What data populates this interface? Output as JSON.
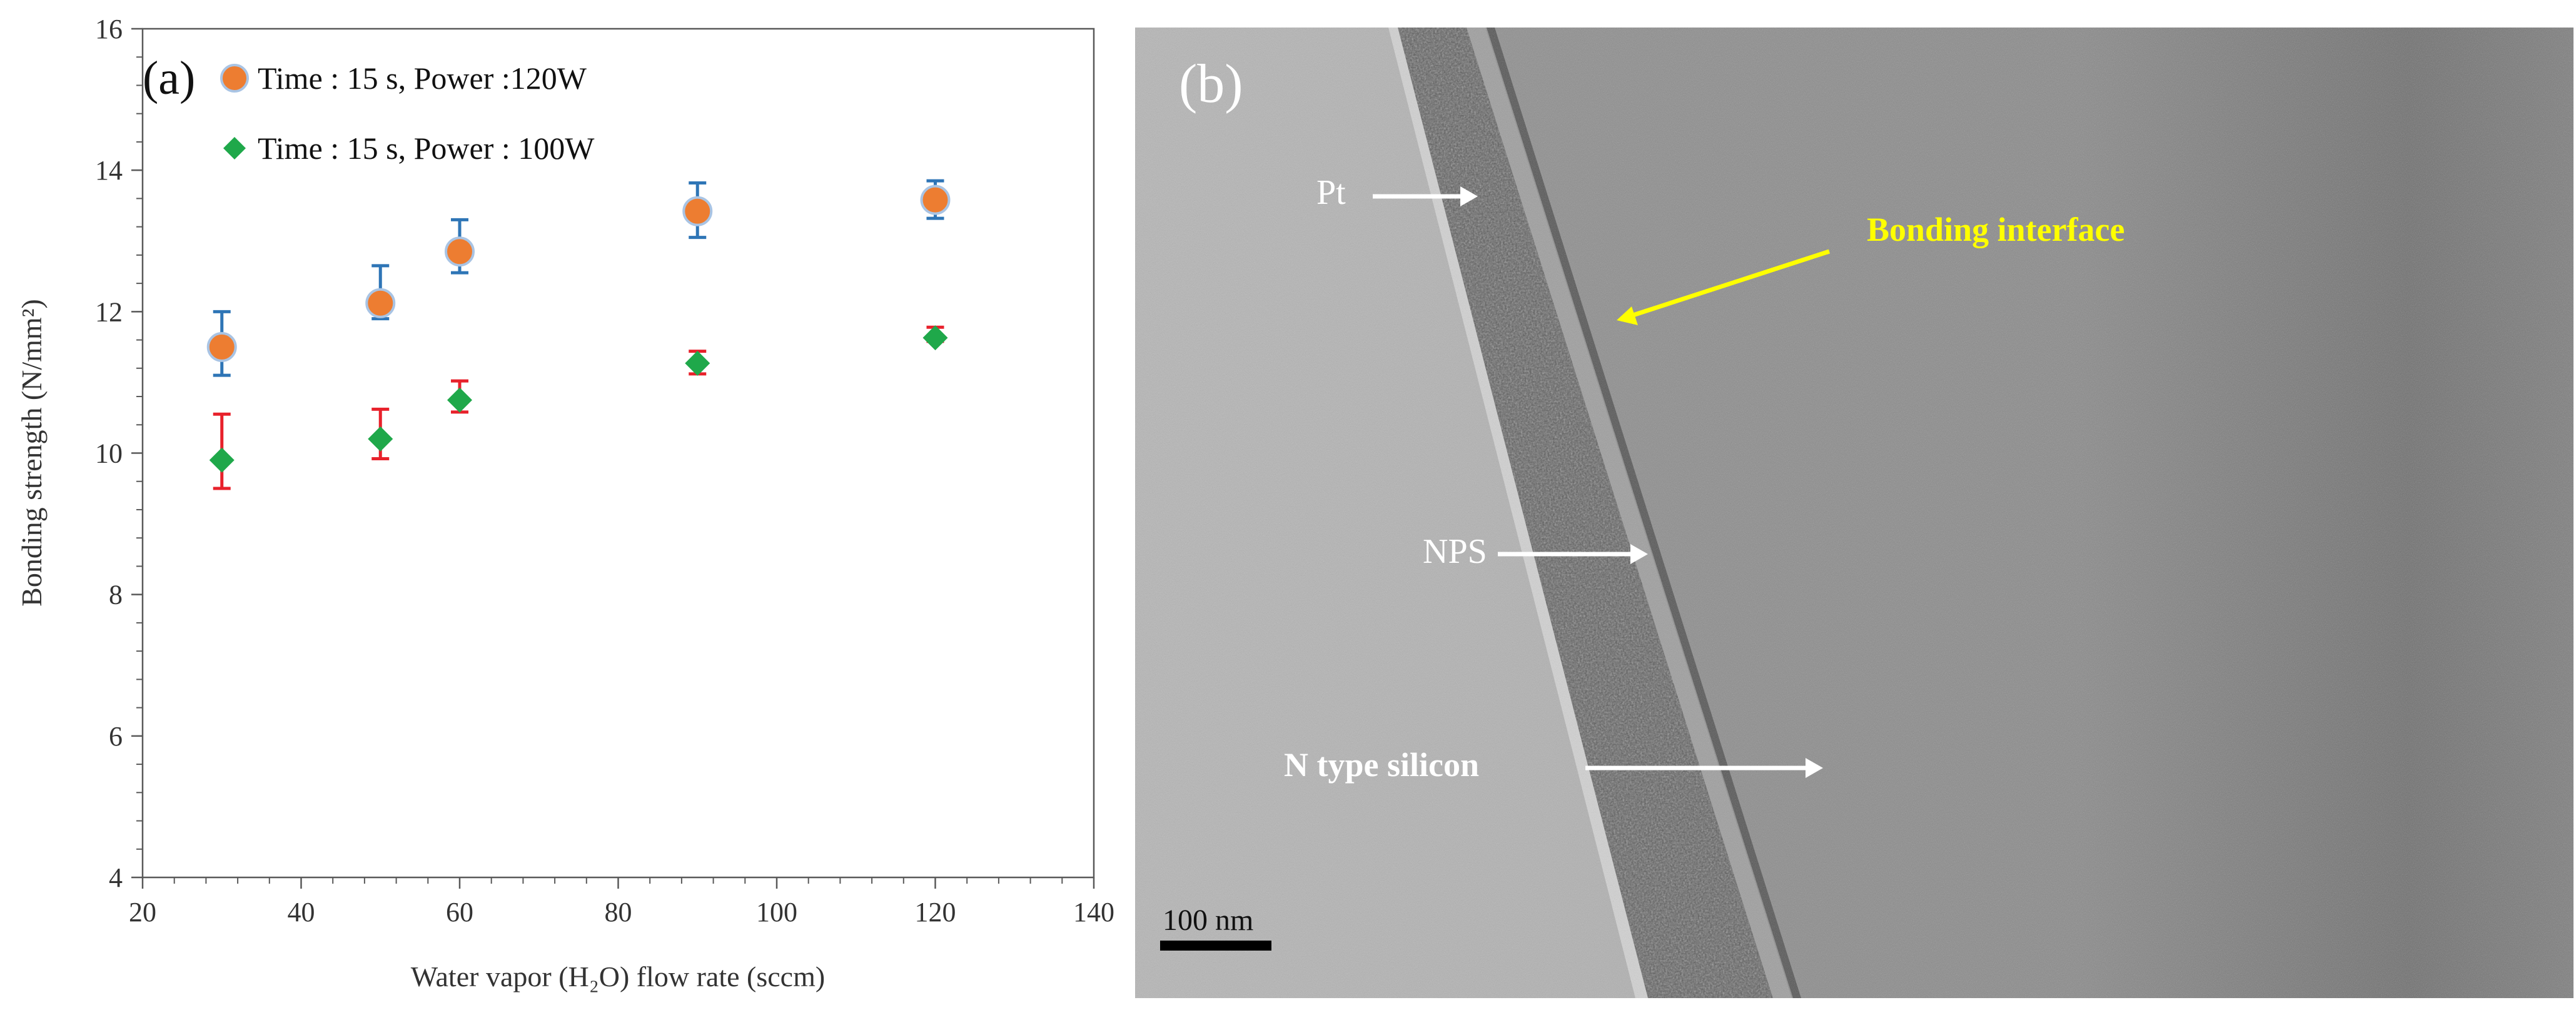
{
  "chart_data": {
    "type": "scatter",
    "panel_label": "(a)",
    "xlabel": "Water vapor (H₂O) flow rate (sccm)",
    "ylabel": "Bonding strength (N/mm²)",
    "xlim": [
      20,
      140
    ],
    "ylim": [
      4,
      16
    ],
    "xticks": [
      "20",
      "40",
      "60",
      "80",
      "100",
      "120",
      "140"
    ],
    "yticks": [
      "4",
      "6",
      "8",
      "10",
      "12",
      "14",
      "16"
    ],
    "grid": false,
    "legend_position": "top-left",
    "series": [
      {
        "name": "Time : 15 s, Power :120W",
        "marker": "circle",
        "color": "#ed7d31",
        "error_bar_color": "#2e75b6",
        "x": [
          30,
          50,
          60,
          90,
          120
        ],
        "y": [
          11.5,
          12.12,
          12.85,
          13.42,
          13.58
        ],
        "err_low": [
          11.1,
          11.9,
          12.55,
          13.05,
          13.32
        ],
        "err_high": [
          12.0,
          12.65,
          13.3,
          13.82,
          13.85
        ]
      },
      {
        "name": "Time : 15 s, Power : 100W",
        "marker": "diamond",
        "color": "#1fa84a",
        "error_bar_color": "#e8212b",
        "x": [
          30,
          50,
          60,
          90,
          120
        ],
        "y": [
          9.9,
          10.2,
          10.75,
          11.27,
          11.63
        ],
        "err_low": [
          9.5,
          9.92,
          10.58,
          11.12,
          11.58
        ],
        "err_high": [
          10.55,
          10.62,
          11.02,
          11.44,
          11.78
        ]
      }
    ]
  },
  "micrograph": {
    "panel_label": "(b)",
    "labels": {
      "pt": "Pt",
      "bonding_interface": "Bonding interface",
      "nps": "NPS",
      "n_type_silicon": "N type silicon"
    },
    "scale_bar": "100 nm",
    "colors": {
      "bonding_interface": "#ffff00",
      "arrows": "#ffffff"
    }
  }
}
